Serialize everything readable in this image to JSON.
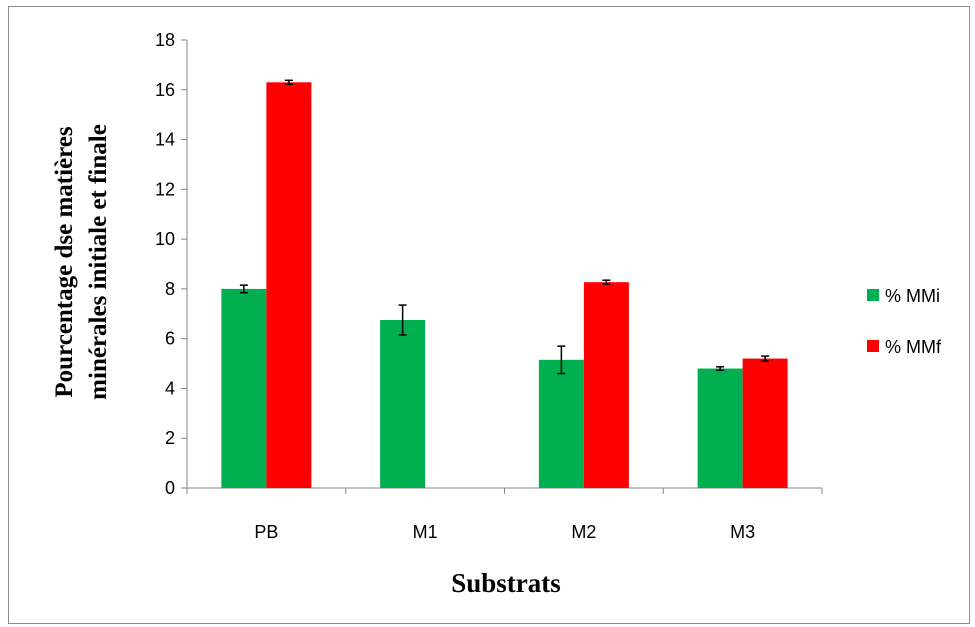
{
  "chart_data": {
    "type": "bar",
    "categories": [
      "PB",
      "M1",
      "M2",
      "M3"
    ],
    "series": [
      {
        "name": "% MMi",
        "values": [
          8.0,
          6.75,
          5.15,
          4.8
        ],
        "errors": [
          0.15,
          0.6,
          0.55,
          0.07
        ],
        "color": "#00b050"
      },
      {
        "name": "% MMf",
        "values": [
          16.3,
          null,
          8.27,
          5.2
        ],
        "errors": [
          0.08,
          null,
          0.08,
          0.1
        ],
        "color": "#ff0000"
      }
    ],
    "ylim": [
      0,
      18
    ],
    "yticks": [
      "0",
      "2",
      "4",
      "6",
      "8",
      "10",
      "12",
      "14",
      "16",
      "18"
    ],
    "xlabel": "Substrats",
    "ylabel_line1": "Pourcentage dse matières",
    "ylabel_line2": "minérales initiale et finale",
    "grid": false,
    "legend_position": "right"
  }
}
